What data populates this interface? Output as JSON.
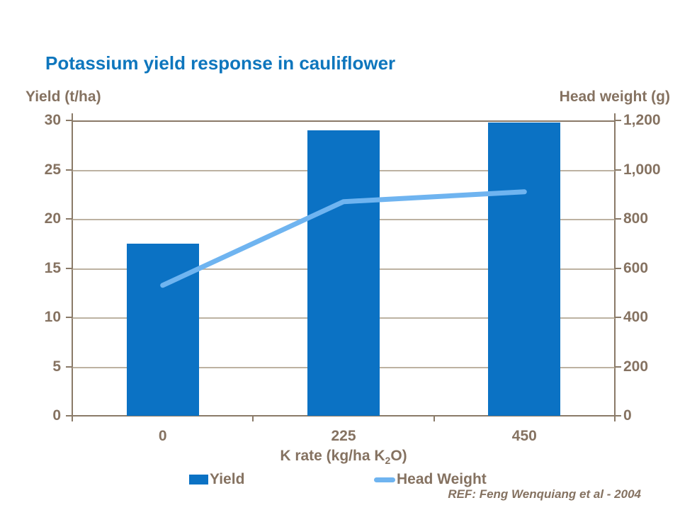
{
  "title": "Potassium yield response in cauliflower",
  "left_axis_title": "Yield (t/ha)",
  "right_axis_title": "Head weight (g)",
  "x_axis": {
    "title_prefix": "K rate (kg/ha K",
    "title_sub": "2",
    "title_suffix": "O)"
  },
  "legend": {
    "yield_label": "Yield",
    "head_weight_label": "Head Weight"
  },
  "reference": "REF: Feng Wenquiang et al - 2004",
  "colors": {
    "title_blue": "#0E76BD",
    "bar_blue": "#0B72C4",
    "line_light_blue": "#6FB4F0",
    "axis_text_brown": "#857261",
    "axis_line": "#8A7A68",
    "gridline": "#BDB2A2"
  },
  "chart_data": {
    "type": "bar",
    "title": "Potassium yield response in cauliflower",
    "categories": [
      "0",
      "225",
      "450"
    ],
    "series": [
      {
        "name": "Yield",
        "type": "bar",
        "axis": "left",
        "values": [
          17.5,
          29,
          29.8
        ],
        "color": "#0B72C4"
      },
      {
        "name": "Head Weight",
        "type": "line",
        "axis": "right",
        "values": [
          530,
          870,
          910
        ],
        "color": "#6FB4F0"
      }
    ],
    "xlabel": "K rate (kg/ha K2O)",
    "left_axis": {
      "label": "Yield (t/ha)",
      "min": 0,
      "max": 30,
      "ticks": [
        "0",
        "5",
        "10",
        "15",
        "20",
        "25",
        "30"
      ]
    },
    "right_axis": {
      "label": "Head weight (g)",
      "min": 0,
      "max": 1200,
      "ticks": [
        "0",
        "200",
        "400",
        "600",
        "800",
        "1,000",
        "1,200"
      ]
    },
    "grid": true,
    "legend_position": "bottom"
  }
}
